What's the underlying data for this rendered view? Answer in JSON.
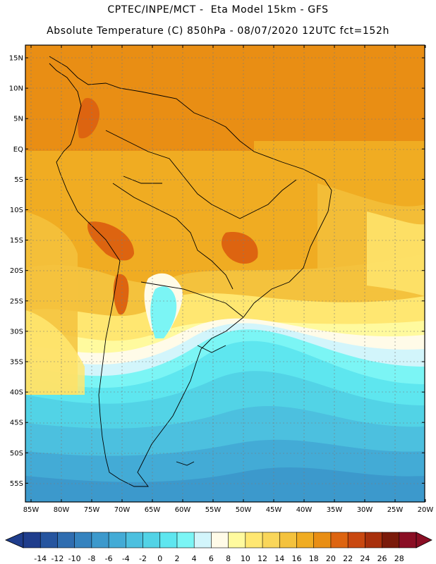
{
  "header": {
    "line1": "CPTEC/INPE/MCT -  Eta Model 15km - GFS",
    "line2": "Absolute Temperature (C) 850hPa - 08/07/2020 12UTC fct=152h"
  },
  "axes": {
    "lat_labels": [
      "15N",
      "10N",
      "5N",
      "EQ",
      "5S",
      "10S",
      "15S",
      "20S",
      "25S",
      "30S",
      "35S",
      "40S",
      "45S",
      "50S",
      "55S"
    ],
    "lon_labels": [
      "85W",
      "80W",
      "75W",
      "70W",
      "65W",
      "60W",
      "55W",
      "50W",
      "45W",
      "40W",
      "35W",
      "30W",
      "25W",
      "20W"
    ]
  },
  "legend": {
    "labels": [
      "-14",
      "-12",
      "-10",
      "-8",
      "-6",
      "-4",
      "-2",
      "0",
      "2",
      "4",
      "6",
      "8",
      "10",
      "12",
      "14",
      "16",
      "18",
      "20",
      "22",
      "24",
      "26",
      "28"
    ],
    "colors": [
      "#1f3d8c",
      "#26559f",
      "#2f6db0",
      "#3583bf",
      "#3c99cc",
      "#43abd6",
      "#4cc0df",
      "#52d3e6",
      "#5ee6ef",
      "#7bf5f5",
      "#d2f5fb",
      "#fffbe8",
      "#fffa9e",
      "#ffe771",
      "#f9d65a",
      "#f4c23d",
      "#f0ac22",
      "#e98e14",
      "#dd6410",
      "#c94810",
      "#a8300c",
      "#7a1a0a",
      "#8a0e24"
    ],
    "low_arrow_color": "#1f3d8c",
    "high_arrow_color": "#8a0e24"
  }
}
